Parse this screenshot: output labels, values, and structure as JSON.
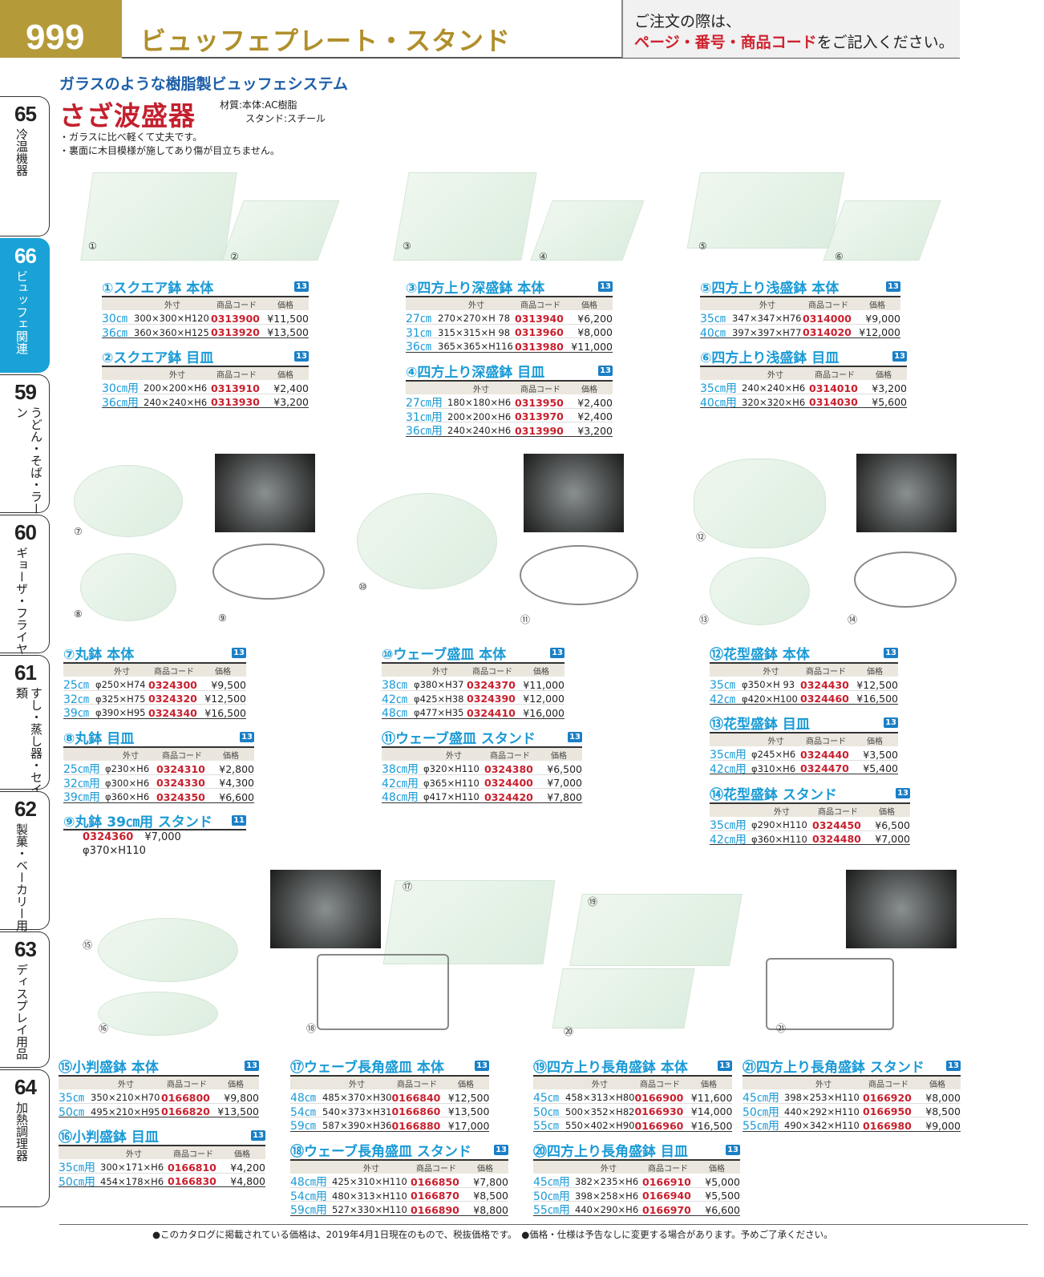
{
  "header": {
    "page_number": "999",
    "title": "ビュッフェプレート・スタンド",
    "note_line1": "ご注文の際は、",
    "note_red": "ページ・番号・商品コード",
    "note_tail": "をご記入ください。"
  },
  "tabs": [
    {
      "num": "65",
      "label": "冷温機器",
      "active": false
    },
    {
      "num": "66",
      "label": "ビュッフェ関連",
      "active": true
    },
    {
      "num": "59",
      "label": "うどん・そば・ラーメン",
      "active": false
    },
    {
      "num": "60",
      "label": "ギョーザ・フライヤー",
      "active": false
    },
    {
      "num": "61",
      "label": "すし・蒸し器・セイロ類",
      "active": false
    },
    {
      "num": "62",
      "label": "製菓・ベーカリー用品",
      "active": false
    },
    {
      "num": "63",
      "label": "ディスプレイ用品",
      "active": false
    },
    {
      "num": "64",
      "label": "加熱調理器",
      "active": false
    }
  ],
  "intro": {
    "subtitle": "ガラスのような樹脂製ビュッフェシステム",
    "title": "さざ波盛器",
    "material1": "材質:本体:AC樹脂",
    "material2": "スタンド:スチール",
    "note1": "・ガラスに比べ軽くて丈夫です。",
    "note2": "・裏面に木目模様が施してあり傷が目立ちません。"
  },
  "table_headers": {
    "dim": "外寸",
    "code": "商品コード",
    "price": "価格"
  },
  "image_labels": [
    "①",
    "②",
    "③",
    "④",
    "⑤",
    "⑥",
    "⑦",
    "⑧",
    "⑨",
    "⑩",
    "⑪",
    "⑫",
    "⑬",
    "⑭",
    "⑮",
    "⑯",
    "⑰",
    "⑱",
    "⑲",
    "⑳",
    "㉑"
  ],
  "products": [
    {
      "title": "①スクエア鉢 本体",
      "badge": "13",
      "rows": [
        [
          "30㎝",
          "300×300×H120",
          "0313900",
          "¥11,500"
        ],
        [
          "36㎝",
          "360×360×H125",
          "0313920",
          "¥13,500"
        ]
      ]
    },
    {
      "title": "②スクエア鉢 目皿",
      "badge": "13",
      "rows": [
        [
          "30㎝用",
          "200×200×H6",
          "0313910",
          "¥2,400"
        ],
        [
          "36㎝用",
          "240×240×H6",
          "0313930",
          "¥3,200"
        ]
      ]
    },
    {
      "title": "③四方上り深盛鉢 本体",
      "badge": "13",
      "rows": [
        [
          "27㎝",
          "270×270×H 78",
          "0313940",
          "¥6,200"
        ],
        [
          "31㎝",
          "315×315×H 98",
          "0313960",
          "¥8,000"
        ],
        [
          "36㎝",
          "365×365×H116",
          "0313980",
          "¥11,000"
        ]
      ]
    },
    {
      "title": "④四方上り深盛鉢 目皿",
      "badge": "13",
      "rows": [
        [
          "27㎝用",
          "180×180×H6",
          "0313950",
          "¥2,400"
        ],
        [
          "31㎝用",
          "200×200×H6",
          "0313970",
          "¥2,400"
        ],
        [
          "36㎝用",
          "240×240×H6",
          "0313990",
          "¥3,200"
        ]
      ]
    },
    {
      "title": "⑤四方上り浅盛鉢 本体",
      "badge": "13",
      "rows": [
        [
          "35㎝",
          "347×347×H76",
          "0314000",
          "¥9,000"
        ],
        [
          "40㎝",
          "397×397×H77",
          "0314020",
          "¥12,000"
        ]
      ]
    },
    {
      "title": "⑥四方上り浅盛鉢 目皿",
      "badge": "13",
      "rows": [
        [
          "35㎝用",
          "240×240×H6",
          "0314010",
          "¥3,200"
        ],
        [
          "40㎝用",
          "320×320×H6",
          "0314030",
          "¥5,600"
        ]
      ]
    },
    {
      "title": "⑦丸鉢 本体",
      "badge": "13",
      "rows": [
        [
          "25㎝",
          "φ250×H74",
          "0324300",
          "¥9,500"
        ],
        [
          "32㎝",
          "φ325×H75",
          "0324320",
          "¥12,500"
        ],
        [
          "39㎝",
          "φ390×H95",
          "0324340",
          "¥16,500"
        ]
      ]
    },
    {
      "title": "⑧丸鉢 目皿",
      "badge": "13",
      "rows": [
        [
          "25㎝用",
          "φ230×H6",
          "0324310",
          "¥2,800"
        ],
        [
          "32㎝用",
          "φ300×H6",
          "0324330",
          "¥4,300"
        ],
        [
          "39㎝用",
          "φ360×H6",
          "0324350",
          "¥6,600"
        ]
      ]
    },
    {
      "title": "⑨丸鉢 39㎝用 スタンド",
      "badge": "11",
      "code": "0324360",
      "price": "¥7,000",
      "dim": "φ370×H110"
    },
    {
      "title": "⑩ウェーブ盛皿 本体",
      "badge": "13",
      "rows": [
        [
          "38㎝",
          "φ380×H37",
          "0324370",
          "¥11,000"
        ],
        [
          "42㎝",
          "φ425×H38",
          "0324390",
          "¥12,000"
        ],
        [
          "48㎝",
          "φ477×H35",
          "0324410",
          "¥16,000"
        ]
      ]
    },
    {
      "title": "⑪ウェーブ盛皿 スタンド",
      "badge": "13",
      "rows": [
        [
          "38㎝用",
          "φ320×H110",
          "0324380",
          "¥6,500"
        ],
        [
          "42㎝用",
          "φ365×H110",
          "0324400",
          "¥7,000"
        ],
        [
          "48㎝用",
          "φ417×H110",
          "0324420",
          "¥7,800"
        ]
      ]
    },
    {
      "title": "⑫花型盛鉢 本体",
      "badge": "13",
      "rows": [
        [
          "35㎝",
          "φ350×H 93",
          "0324430",
          "¥12,500"
        ],
        [
          "42㎝",
          "φ420×H100",
          "0324460",
          "¥16,500"
        ]
      ]
    },
    {
      "title": "⑬花型盛鉢 目皿",
      "badge": "13",
      "rows": [
        [
          "35㎝用",
          "φ245×H6",
          "0324440",
          "¥3,500"
        ],
        [
          "42㎝用",
          "φ310×H6",
          "0324470",
          "¥5,400"
        ]
      ]
    },
    {
      "title": "⑭花型盛鉢 スタンド",
      "badge": "13",
      "rows": [
        [
          "35㎝用",
          "φ290×H110",
          "0324450",
          "¥6,500"
        ],
        [
          "42㎝用",
          "φ360×H110",
          "0324480",
          "¥7,000"
        ]
      ]
    },
    {
      "title": "⑮小判盛鉢 本体",
      "badge": "13",
      "rows": [
        [
          "35㎝",
          "350×210×H70",
          "0166800",
          "¥9,800"
        ],
        [
          "50㎝",
          "495×210×H95",
          "0166820",
          "¥13,500"
        ]
      ]
    },
    {
      "title": "⑯小判盛鉢 目皿",
      "badge": "13",
      "rows": [
        [
          "35㎝用",
          "300×171×H6",
          "0166810",
          "¥4,200"
        ],
        [
          "50㎝用",
          "454×178×H6",
          "0166830",
          "¥4,800"
        ]
      ]
    },
    {
      "title": "⑰ウェーブ長角盛皿 本体",
      "badge": "13",
      "rows": [
        [
          "48㎝",
          "485×370×H30",
          "0166840",
          "¥12,500"
        ],
        [
          "54㎝",
          "540×373×H31",
          "0166860",
          "¥13,500"
        ],
        [
          "59㎝",
          "587×390×H36",
          "0166880",
          "¥17,000"
        ]
      ]
    },
    {
      "title": "⑱ウェーブ長角盛皿 スタンド",
      "badge": "13",
      "rows": [
        [
          "48㎝用",
          "425×310×H110",
          "0166850",
          "¥7,800"
        ],
        [
          "54㎝用",
          "480×313×H110",
          "0166870",
          "¥8,500"
        ],
        [
          "59㎝用",
          "527×330×H110",
          "0166890",
          "¥8,800"
        ]
      ]
    },
    {
      "title": "⑲四方上り長角盛鉢 本体",
      "badge": "13",
      "rows": [
        [
          "45㎝",
          "458×313×H80",
          "0166900",
          "¥11,600"
        ],
        [
          "50㎝",
          "500×352×H82",
          "0166930",
          "¥14,000"
        ],
        [
          "55㎝",
          "550×402×H90",
          "0166960",
          "¥16,500"
        ]
      ]
    },
    {
      "title": "⑳四方上り長角盛鉢 目皿",
      "badge": "13",
      "rows": [
        [
          "45㎝用",
          "382×235×H6",
          "0166910",
          "¥5,000"
        ],
        [
          "50㎝用",
          "398×258×H6",
          "0166940",
          "¥5,500"
        ],
        [
          "55㎝用",
          "440×290×H6",
          "0166970",
          "¥6,600"
        ]
      ]
    },
    {
      "title": "㉑四方上り長角盛鉢 スタンド",
      "badge": "13",
      "rows": [
        [
          "45㎝用",
          "398×253×H110",
          "0166920",
          "¥8,000"
        ],
        [
          "50㎝用",
          "440×292×H110",
          "0166950",
          "¥8,500"
        ],
        [
          "55㎝用",
          "490×342×H110",
          "0166980",
          "¥9,000"
        ]
      ]
    }
  ],
  "footer": "●このカタログに掲載されている価格は、2019年4月1日現在のもので、税抜価格です。　●価格・仕様は予告なしに変更する場合があります。予めご了承ください。"
}
